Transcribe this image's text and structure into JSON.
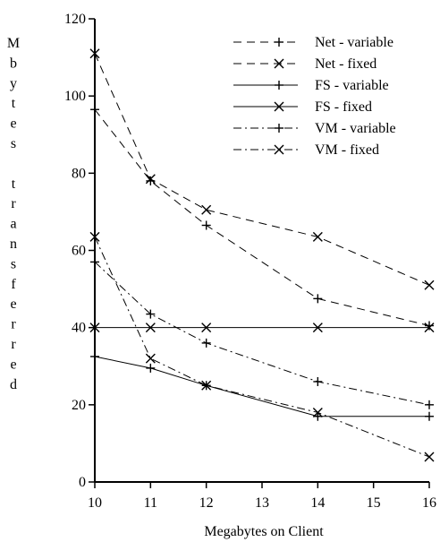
{
  "chart_data": {
    "type": "line",
    "title": "",
    "xlabel": "Megabytes on Client",
    "ylabel": "M b y t e s  t r a n s f e r r e d",
    "xlim": [
      10,
      16
    ],
    "ylim": [
      0,
      120
    ],
    "x_ticks": [
      10,
      11,
      12,
      13,
      14,
      15,
      16
    ],
    "y_ticks": [
      0,
      20,
      40,
      60,
      80,
      100,
      120
    ],
    "grid": false,
    "legend_position": "top-right",
    "x": [
      10,
      11,
      12,
      14,
      16
    ],
    "series": [
      {
        "name": "Net - variable",
        "line_style": "dashed",
        "marker": "plus",
        "values": [
          96.5,
          78.0,
          66.5,
          47.5,
          40.5
        ]
      },
      {
        "name": "Net - fixed",
        "line_style": "dashed",
        "marker": "x",
        "values": [
          111.0,
          78.5,
          70.5,
          63.5,
          51.0
        ]
      },
      {
        "name": "FS - variable",
        "line_style": "solid",
        "marker": "plus",
        "values": [
          32.5,
          29.5,
          25.0,
          17.0,
          17.0
        ]
      },
      {
        "name": "FS - fixed",
        "line_style": "solid",
        "marker": "x",
        "values": [
          40.0,
          40.0,
          40.0,
          40.0,
          40.0
        ]
      },
      {
        "name": "VM - variable",
        "line_style": "dashdot",
        "marker": "plus",
        "values": [
          57.0,
          43.5,
          36.0,
          26.0,
          20.0
        ]
      },
      {
        "name": "VM - fixed",
        "line_style": "dashdot",
        "marker": "x",
        "values": [
          63.5,
          32.0,
          25.0,
          18.0,
          6.5
        ]
      }
    ]
  }
}
